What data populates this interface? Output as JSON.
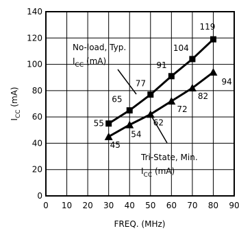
{
  "chart_data": {
    "type": "line",
    "title": "",
    "xlabel": "FREQ. (MHz)",
    "ylabel": {
      "base": "I",
      "sub": "CC",
      "rest": " (mA)"
    },
    "xlim": [
      0,
      90
    ],
    "ylim": [
      0,
      140
    ],
    "x_ticks": [
      "0",
      "10",
      "20",
      "30",
      "40",
      "50",
      "60",
      "70",
      "80",
      "90"
    ],
    "y_ticks": [
      "0",
      "20",
      "40",
      "60",
      "80",
      "100",
      "120",
      "140"
    ],
    "grid": true,
    "series": [
      {
        "name": "No-load, Typ. ICC (mA)",
        "marker": "square",
        "x": [
          30,
          40,
          50,
          60,
          70,
          80
        ],
        "values": [
          55,
          65,
          77,
          91,
          104,
          119
        ],
        "labels": [
          "55",
          "65",
          "77",
          "91",
          "104",
          "119"
        ]
      },
      {
        "name": "Tri-State, Min. ICC (mA)",
        "marker": "triangle",
        "x": [
          30,
          40,
          50,
          60,
          70,
          80
        ],
        "values": [
          45,
          54,
          62,
          72,
          82,
          94
        ],
        "labels": [
          "45",
          "54",
          "62",
          "72",
          "82",
          "94"
        ]
      }
    ],
    "annotations": [
      {
        "line1": "No-load, Typ.",
        "line2_base": "I",
        "line2_sub": "CC",
        "line2_rest": " (mA)"
      },
      {
        "line1": "Tri-State, Min.",
        "line2_base": "I",
        "line2_sub": "CC",
        "line2_rest": " (mA)"
      }
    ]
  }
}
